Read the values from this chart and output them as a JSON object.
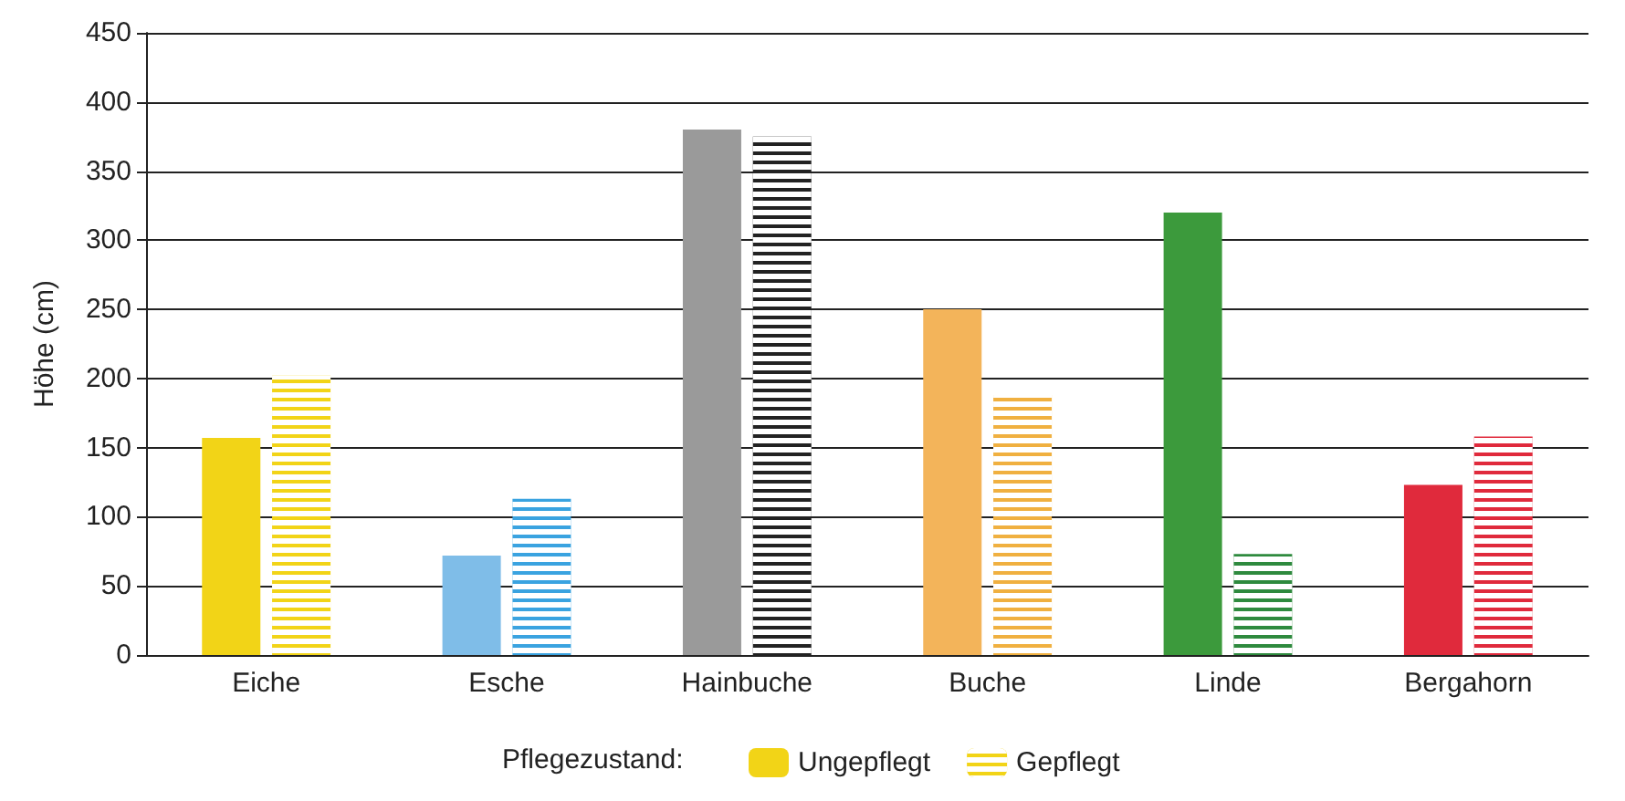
{
  "chart_data": {
    "type": "bar",
    "ylabel": "Höhe (cm)",
    "legend_title": "Pflegezustand:",
    "categories": [
      "Eiche",
      "Esche",
      "Hainbuche",
      "Buche",
      "Linde",
      "Bergahorn"
    ],
    "series": [
      {
        "name": "Ungepflegt",
        "color": "#f2d417",
        "colors": [
          "#f2d417",
          "#7fbde8",
          "#9a9a9a",
          "#f3b45a",
          "#3c9a3c",
          "#e02a3c"
        ],
        "values": [
          157,
          72,
          380,
          250,
          320,
          123
        ]
      },
      {
        "name": "Gepflegt",
        "color": "#f2d417",
        "colors": [
          "#f2d417",
          "#3aa3e0",
          "#222222",
          "#f0b040",
          "#2e8a3e",
          "#e02a3c"
        ],
        "values": [
          202,
          113,
          375,
          188,
          73,
          158
        ]
      }
    ],
    "ylim": [
      0,
      450
    ],
    "yticks": [
      0,
      50,
      100,
      150,
      200,
      250,
      300,
      350,
      400,
      450
    ],
    "grid": "y",
    "legend": "bottom"
  }
}
